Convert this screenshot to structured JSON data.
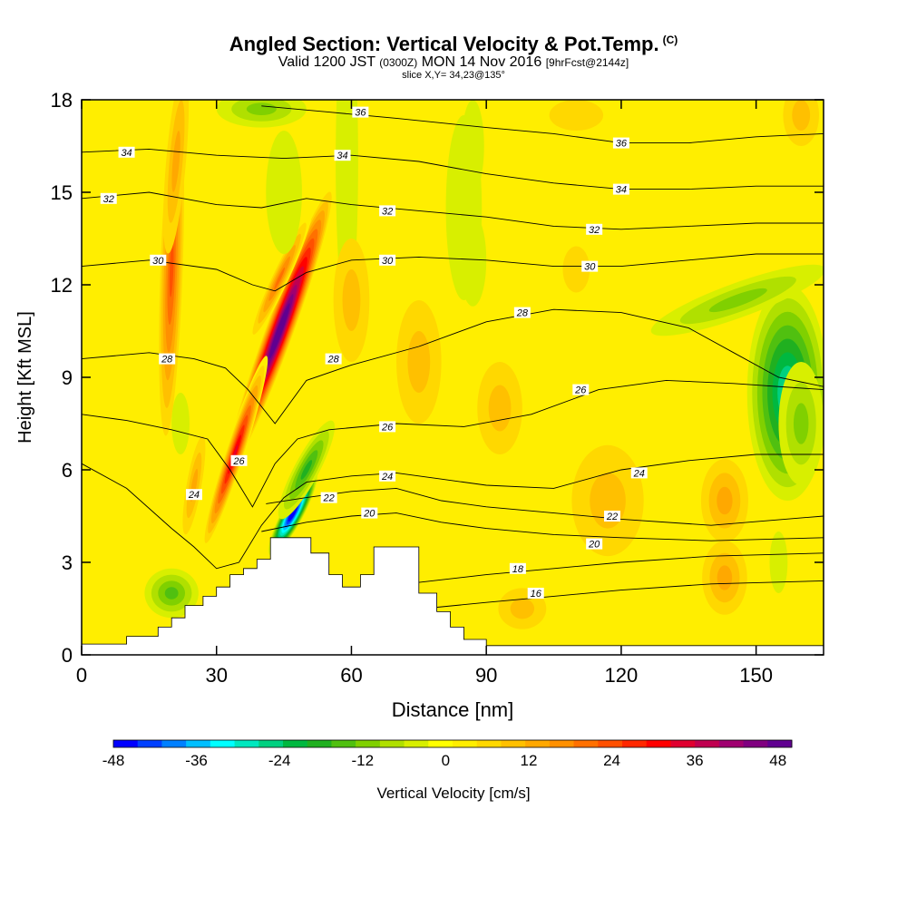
{
  "header": {
    "title": "Angled Section: Vertical Velocity & Pot.Temp.",
    "copyright": "(C)",
    "valid_prefix": "Valid 1200 JST",
    "valid_utc": "(0300Z)",
    "valid_date": "MON 14 Nov 2016",
    "forecast": "[9hrFcst@2144z]",
    "slice": "slice X,Y= 34,23@135°"
  },
  "chart_data": {
    "type": "heatmap",
    "xlabel": "Distance [nm]",
    "ylabel": "Height [Kft MSL]",
    "xlim": [
      0,
      165
    ],
    "ylim": [
      0,
      18
    ],
    "x_ticks": [
      0,
      30,
      60,
      90,
      120,
      150
    ],
    "y_ticks": [
      0,
      3,
      6,
      9,
      12,
      15,
      18
    ],
    "colorbar": {
      "label": "Vertical Velocity [cm/s]",
      "range": [
        -48,
        50
      ],
      "tick_values": [
        -48,
        -36,
        -24,
        -12,
        0,
        12,
        24,
        36,
        48
      ],
      "colors": [
        "#0000ff",
        "#0040ff",
        "#0080ff",
        "#00bfff",
        "#00ffff",
        "#00e8bf",
        "#00d080",
        "#00b840",
        "#20b020",
        "#50c010",
        "#80d000",
        "#b0e000",
        "#d8ef00",
        "#ffff00",
        "#ffee00",
        "#ffd800",
        "#ffc000",
        "#ffa800",
        "#ff9000",
        "#ff7000",
        "#ff5000",
        "#ff2800",
        "#ff0000",
        "#e00030",
        "#c00050",
        "#a00070",
        "#800080",
        "#600090"
      ]
    },
    "terrain": [
      {
        "x": 0,
        "h": 0.35
      },
      {
        "x": 10,
        "h": 0.6
      },
      {
        "x": 17,
        "h": 0.9
      },
      {
        "x": 20,
        "h": 1.2
      },
      {
        "x": 23,
        "h": 1.6
      },
      {
        "x": 27,
        "h": 1.9
      },
      {
        "x": 30,
        "h": 2.2
      },
      {
        "x": 33,
        "h": 2.6
      },
      {
        "x": 36,
        "h": 2.8
      },
      {
        "x": 39,
        "h": 3.1
      },
      {
        "x": 42,
        "h": 3.8
      },
      {
        "x": 47,
        "h": 3.8
      },
      {
        "x": 51,
        "h": 3.3
      },
      {
        "x": 55,
        "h": 2.6
      },
      {
        "x": 58,
        "h": 2.2
      },
      {
        "x": 62,
        "h": 2.6
      },
      {
        "x": 65,
        "h": 3.5
      },
      {
        "x": 71,
        "h": 3.5
      },
      {
        "x": 75,
        "h": 2.0
      },
      {
        "x": 79,
        "h": 1.4
      },
      {
        "x": 82,
        "h": 0.9
      },
      {
        "x": 85,
        "h": 0.5
      },
      {
        "x": 90,
        "h": 0.3
      },
      {
        "x": 165,
        "h": 0.3
      }
    ],
    "series": [
      {
        "name": "16",
        "x": [
          76,
          90,
          105,
          120,
          140,
          165
        ],
        "y": [
          1.5,
          1.7,
          1.9,
          2.1,
          2.3,
          2.4
        ],
        "labels": [
          {
            "x": 101,
            "y": 2.0
          }
        ]
      },
      {
        "name": "18",
        "x": [
          72,
          90,
          105,
          120,
          140,
          165
        ],
        "y": [
          2.3,
          2.6,
          2.8,
          3.0,
          3.2,
          3.3
        ],
        "labels": [
          {
            "x": 97,
            "y": 2.8
          }
        ]
      },
      {
        "name": "20",
        "x": [
          40,
          50,
          60,
          70,
          80,
          90,
          105,
          120,
          140,
          165
        ],
        "y": [
          4.0,
          4.3,
          4.5,
          4.6,
          4.3,
          4.1,
          3.9,
          3.8,
          3.7,
          3.8
        ],
        "labels": [
          {
            "x": 64,
            "y": 4.6
          },
          {
            "x": 114,
            "y": 3.6
          }
        ]
      },
      {
        "name": "22",
        "x": [
          41,
          50,
          60,
          70,
          80,
          90,
          105,
          120,
          140,
          165
        ],
        "y": [
          4.9,
          5.1,
          5.3,
          5.4,
          5.0,
          4.8,
          4.6,
          4.4,
          4.2,
          4.5
        ],
        "labels": [
          {
            "x": 55,
            "y": 5.1
          },
          {
            "x": 118,
            "y": 4.5
          }
        ]
      },
      {
        "name": "24",
        "x": [
          0,
          10,
          20,
          25,
          30,
          35,
          40,
          45,
          50,
          60,
          70,
          80,
          90,
          105,
          120,
          135,
          150,
          165
        ],
        "y": [
          6.2,
          5.4,
          4.1,
          3.5,
          2.8,
          3.0,
          4.2,
          5.1,
          5.6,
          5.8,
          5.9,
          5.7,
          5.5,
          5.4,
          6.0,
          6.3,
          6.5,
          6.5
        ],
        "labels": [
          {
            "x": 25,
            "y": 5.2
          },
          {
            "x": 68,
            "y": 5.8
          },
          {
            "x": 124,
            "y": 5.9
          }
        ]
      },
      {
        "name": "26",
        "x": [
          0,
          10,
          20,
          28,
          33,
          38,
          43,
          48,
          55,
          70,
          85,
          100,
          115,
          130,
          145,
          165
        ],
        "y": [
          7.8,
          7.6,
          7.3,
          7.0,
          6.0,
          4.8,
          6.2,
          7.0,
          7.3,
          7.5,
          7.4,
          7.8,
          8.6,
          8.9,
          8.8,
          8.6
        ],
        "labels": [
          {
            "x": 35,
            "y": 6.3
          },
          {
            "x": 68,
            "y": 7.4
          },
          {
            "x": 111,
            "y": 8.6
          }
        ]
      },
      {
        "name": "28",
        "x": [
          0,
          15,
          25,
          32,
          37,
          43,
          50,
          60,
          75,
          90,
          105,
          120,
          135,
          145,
          155,
          165
        ],
        "y": [
          9.6,
          9.8,
          9.6,
          9.3,
          8.6,
          7.5,
          8.9,
          9.4,
          10.0,
          10.8,
          11.2,
          11.1,
          10.6,
          9.8,
          9.0,
          8.7
        ],
        "labels": [
          {
            "x": 19,
            "y": 9.6
          },
          {
            "x": 56,
            "y": 9.6
          },
          {
            "x": 98,
            "y": 11.1
          }
        ]
      },
      {
        "name": "30",
        "x": [
          0,
          15,
          30,
          38,
          43,
          50,
          60,
          75,
          90,
          105,
          120,
          135,
          150,
          165
        ],
        "y": [
          12.6,
          12.8,
          12.5,
          12.0,
          11.8,
          12.4,
          12.8,
          12.9,
          12.8,
          12.6,
          12.6,
          12.8,
          13.0,
          13.0
        ],
        "labels": [
          {
            "x": 17,
            "y": 12.8
          },
          {
            "x": 68,
            "y": 12.8
          },
          {
            "x": 113,
            "y": 12.6
          }
        ]
      },
      {
        "name": "32",
        "x": [
          0,
          15,
          30,
          40,
          50,
          60,
          75,
          90,
          105,
          120,
          135,
          150,
          165
        ],
        "y": [
          14.8,
          15.0,
          14.6,
          14.5,
          14.8,
          14.6,
          14.4,
          14.2,
          13.9,
          13.8,
          13.9,
          14.0,
          14.0
        ],
        "labels": [
          {
            "x": 6,
            "y": 14.8
          },
          {
            "x": 68,
            "y": 14.4
          },
          {
            "x": 114,
            "y": 13.8
          }
        ]
      },
      {
        "name": "34",
        "x": [
          0,
          15,
          30,
          45,
          60,
          75,
          90,
          105,
          120,
          135,
          150,
          165
        ],
        "y": [
          16.3,
          16.4,
          16.2,
          16.1,
          16.2,
          16.0,
          15.6,
          15.3,
          15.1,
          15.1,
          15.2,
          15.2
        ],
        "labels": [
          {
            "x": 10,
            "y": 16.3
          },
          {
            "x": 58,
            "y": 16.2
          },
          {
            "x": 120,
            "y": 15.1
          }
        ]
      },
      {
        "name": "36",
        "x": [
          40,
          55,
          70,
          90,
          105,
          120,
          135,
          150,
          165
        ],
        "y": [
          17.8,
          17.6,
          17.4,
          17.1,
          16.9,
          16.6,
          16.6,
          16.8,
          16.9
        ],
        "labels": [
          {
            "x": 62,
            "y": 17.6
          },
          {
            "x": 120,
            "y": 16.6
          }
        ]
      }
    ],
    "velocity_features": [
      {
        "x": 44,
        "y": 10.5,
        "rx": 5.5,
        "ry": 4.0,
        "v": 54,
        "angle": 70
      },
      {
        "x": 44,
        "y": 12.2,
        "rx": 3.5,
        "ry": 2.0,
        "v": 20,
        "angle": 65
      },
      {
        "x": 34,
        "y": 6.5,
        "rx": 3.8,
        "ry": 2.8,
        "v": 34,
        "angle": 72
      },
      {
        "x": 25,
        "y": 5.5,
        "rx": 4.0,
        "ry": 1.8,
        "v": 14,
        "angle": 80
      },
      {
        "x": 20,
        "y": 12.5,
        "rx": 4.5,
        "ry": 4.5,
        "v": 22,
        "angle": 88
      },
      {
        "x": 21,
        "y": 16.0,
        "rx": 4.0,
        "ry": 2.5,
        "v": 12,
        "angle": 85
      },
      {
        "x": 47,
        "y": 4.6,
        "rx": 4.3,
        "ry": 1.3,
        "v": -54,
        "angle": 62
      },
      {
        "x": 50,
        "y": 6.0,
        "rx": 5.0,
        "ry": 1.5,
        "v": -18,
        "angle": 62
      },
      {
        "x": 20,
        "y": 2.0,
        "rx": 6.0,
        "ry": 0.8,
        "v": -14,
        "angle": 0
      },
      {
        "x": 22,
        "y": 7.5,
        "rx": 2.0,
        "ry": 1.0,
        "v": -5,
        "angle": 0
      },
      {
        "x": 40,
        "y": 17.7,
        "rx": 10.0,
        "ry": 0.6,
        "v": -12,
        "angle": 0
      },
      {
        "x": 45,
        "y": 15.0,
        "rx": 4.0,
        "ry": 2.0,
        "v": -6,
        "angle": 0
      },
      {
        "x": 59,
        "y": 16.0,
        "rx": 2.5,
        "ry": 5.0,
        "v": -6,
        "angle": 0
      },
      {
        "x": 85,
        "y": 14.5,
        "rx": 4.0,
        "ry": 3.0,
        "v": -5,
        "angle": 0
      },
      {
        "x": 87,
        "y": 16.5,
        "rx": 2.5,
        "ry": 1.5,
        "v": -4,
        "angle": 0
      },
      {
        "x": 87,
        "y": 12.8,
        "rx": 3.0,
        "ry": 1.5,
        "v": -4,
        "angle": 0
      },
      {
        "x": 157,
        "y": 8.5,
        "rx": 9.0,
        "ry": 3.5,
        "v": -28,
        "angle": 0
      },
      {
        "x": 146,
        "y": 11.5,
        "rx": 7.0,
        "ry": 2.5,
        "v": -12,
        "angle": 20
      },
      {
        "x": 160,
        "y": 7.5,
        "rx": 5.0,
        "ry": 2.0,
        "v": -10,
        "angle": 0
      },
      {
        "x": 155,
        "y": 3.0,
        "rx": 2.0,
        "ry": 1.0,
        "v": -3,
        "angle": 0
      },
      {
        "x": 117,
        "y": 5.0,
        "rx": 8.0,
        "ry": 1.8,
        "v": 8,
        "angle": 0
      },
      {
        "x": 143,
        "y": 5.0,
        "rx": 7.0,
        "ry": 1.8,
        "v": 14,
        "angle": 0
      },
      {
        "x": 143,
        "y": 2.5,
        "rx": 5.0,
        "ry": 1.2,
        "v": 12,
        "angle": 0
      },
      {
        "x": 93,
        "y": 8.0,
        "rx": 5.0,
        "ry": 1.5,
        "v": 8,
        "angle": 0
      },
      {
        "x": 98,
        "y": 1.5,
        "rx": 8.0,
        "ry": 1.0,
        "v": 10,
        "angle": 0
      },
      {
        "x": 75,
        "y": 9.5,
        "rx": 5.0,
        "ry": 2.0,
        "v": 8,
        "angle": 0
      },
      {
        "x": 60,
        "y": 11.5,
        "rx": 4.0,
        "ry": 2.0,
        "v": 8,
        "angle": 0
      },
      {
        "x": 110,
        "y": 17.5,
        "rx": 12.0,
        "ry": 1.0,
        "v": 6,
        "angle": 0
      },
      {
        "x": 160,
        "y": 17.5,
        "rx": 6.0,
        "ry": 1.5,
        "v": 10,
        "angle": 0
      },
      {
        "x": 110,
        "y": 12.5,
        "rx": 6.0,
        "ry": 1.5,
        "v": 6,
        "angle": 0
      }
    ]
  }
}
